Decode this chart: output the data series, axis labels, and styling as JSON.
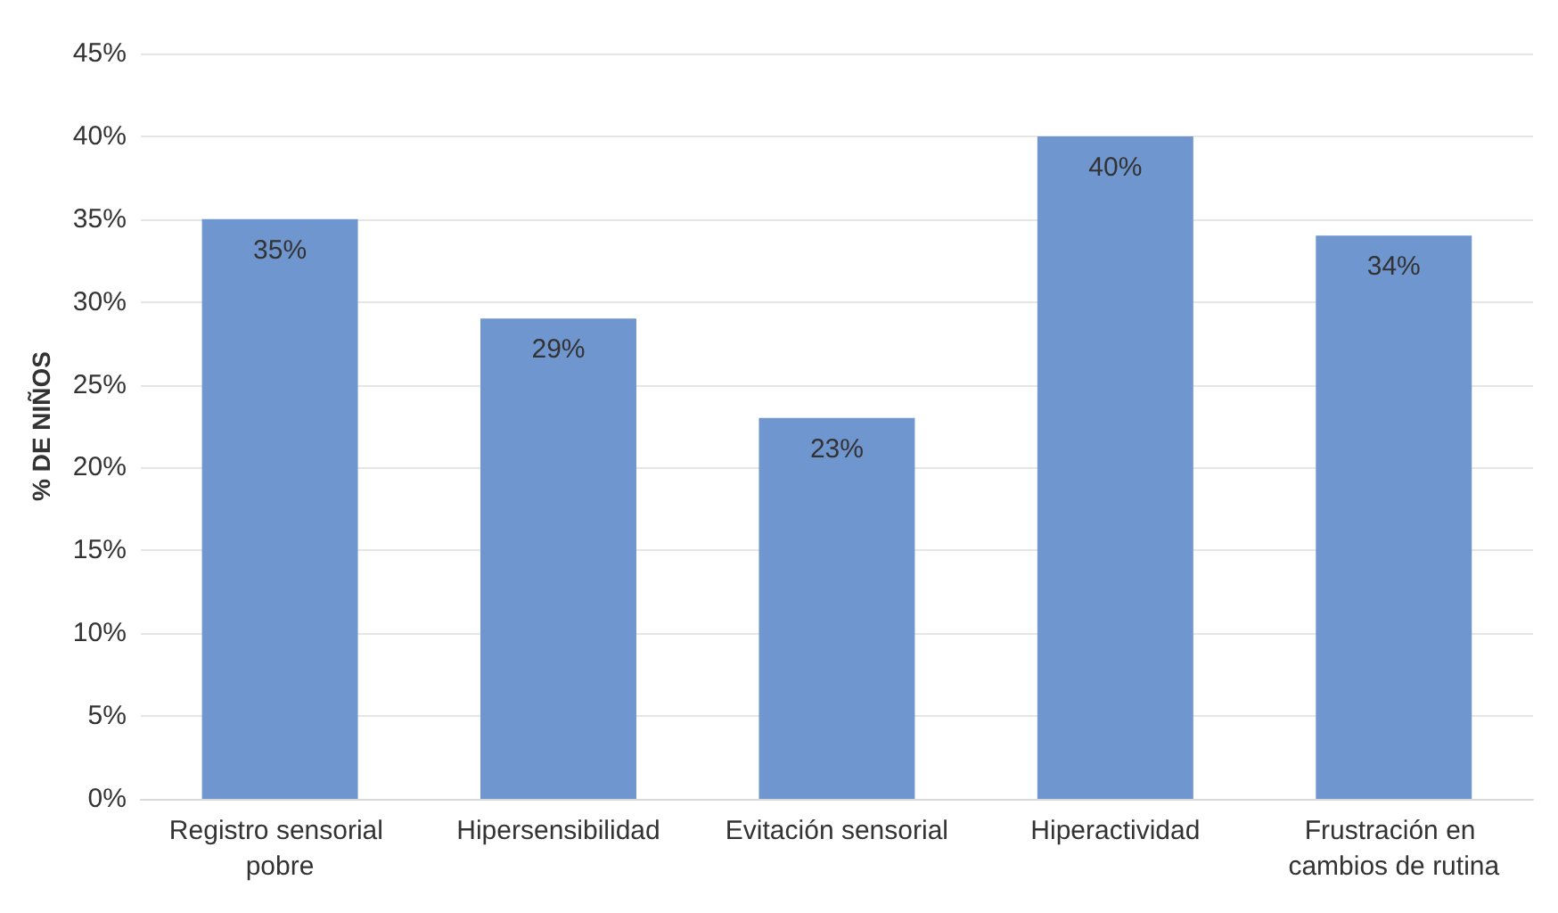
{
  "chart_data": {
    "type": "bar",
    "ylabel": "% DE NIÑOS",
    "categories": [
      "Registro sensorial pobre",
      "Hipersensibilidad",
      "Evitación sensorial",
      "Hiperactividad",
      "Frustración en cambios de rutina"
    ],
    "values": [
      35,
      29,
      23,
      40,
      34
    ],
    "value_labels": [
      "35%",
      "29%",
      "23%",
      "40%",
      "34%"
    ],
    "color": "#6f96cf",
    "ylim": [
      0,
      45
    ],
    "yticks": [
      {
        "value": 0,
        "label": "0%"
      },
      {
        "value": 5,
        "label": "5%"
      },
      {
        "value": 10,
        "label": "10%"
      },
      {
        "value": 15,
        "label": "15%"
      },
      {
        "value": 20,
        "label": "20%"
      },
      {
        "value": 25,
        "label": "25%"
      },
      {
        "value": 30,
        "label": "30%"
      },
      {
        "value": 35,
        "label": "35%"
      },
      {
        "value": 40,
        "label": "40%"
      },
      {
        "value": 45,
        "label": "45%"
      }
    ],
    "grid": true
  }
}
